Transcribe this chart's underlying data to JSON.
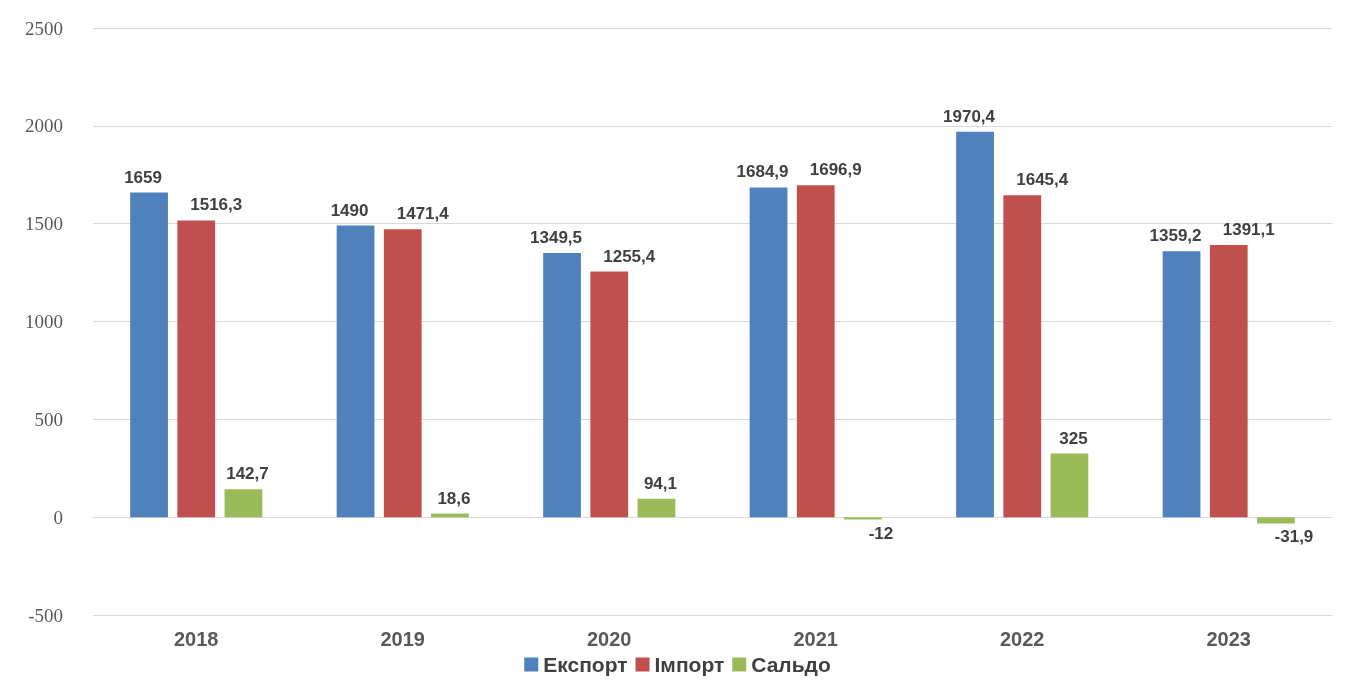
{
  "chart_data": {
    "type": "bar",
    "categories": [
      "2018",
      "2019",
      "2020",
      "2021",
      "2022",
      "2023"
    ],
    "series": [
      {
        "name": "Експорт",
        "color": "#4f81bd",
        "values": [
          1659,
          1490,
          1349.5,
          1684.9,
          1970.4,
          1359.2
        ],
        "value_labels": [
          "1659",
          "1490",
          "1349,5",
          "1684,9",
          "1970,4",
          "1359,2"
        ]
      },
      {
        "name": "Імпорт",
        "color": "#c0504d",
        "values": [
          1516.3,
          1471.4,
          1255.4,
          1696.9,
          1645.4,
          1391.1
        ],
        "value_labels": [
          "1516,3",
          "1471,4",
          "1255,4",
          "1696,9",
          "1645,4",
          "1391,1"
        ]
      },
      {
        "name": "Сальдо",
        "color": "#9bbb59",
        "values": [
          142.7,
          18.6,
          94.1,
          -12,
          325,
          -31.9
        ],
        "value_labels": [
          "142,7",
          "18,6",
          "94,1",
          "-12",
          "325",
          "-31,9"
        ]
      }
    ],
    "ylim": [
      -500,
      2500
    ],
    "yticks": [
      -500,
      0,
      500,
      1000,
      1500,
      2000,
      2500
    ],
    "grid": "y",
    "legend": "bottom"
  }
}
